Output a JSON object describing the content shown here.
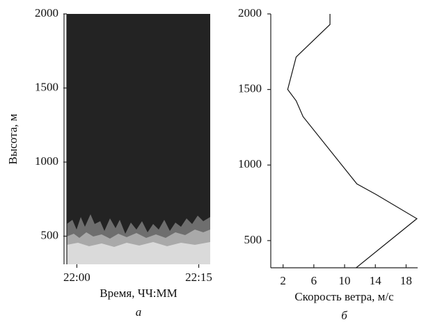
{
  "chart_data": [
    {
      "type": "image",
      "subtitle": "а",
      "categories": [
        "22:00",
        "22:15"
      ],
      "ylim": [
        310,
        2000
      ],
      "yticks": [
        500,
        1000,
        1500,
        2000
      ],
      "ylabel": "Высота, м",
      "xlabel": "Время, ЧЧ:ММ"
    },
    {
      "type": "line",
      "subtitle": "б",
      "color": "#111",
      "x": [
        8.1,
        8.1,
        3.7,
        2.6,
        3.7,
        4.6,
        11.6,
        14.1,
        19.4,
        11.5
      ],
      "values": [
        2000,
        1930,
        1715,
        1500,
        1425,
        1320,
        875,
        805,
        645,
        320
      ],
      "xlim": [
        0.4,
        19.5
      ],
      "xticks": [
        2,
        6,
        10,
        14,
        18
      ],
      "ylim": [
        320,
        2000
      ],
      "yticks": [
        500,
        1000,
        1500,
        2000
      ],
      "xlabel": "Скорость ветра, м/с"
    }
  ]
}
